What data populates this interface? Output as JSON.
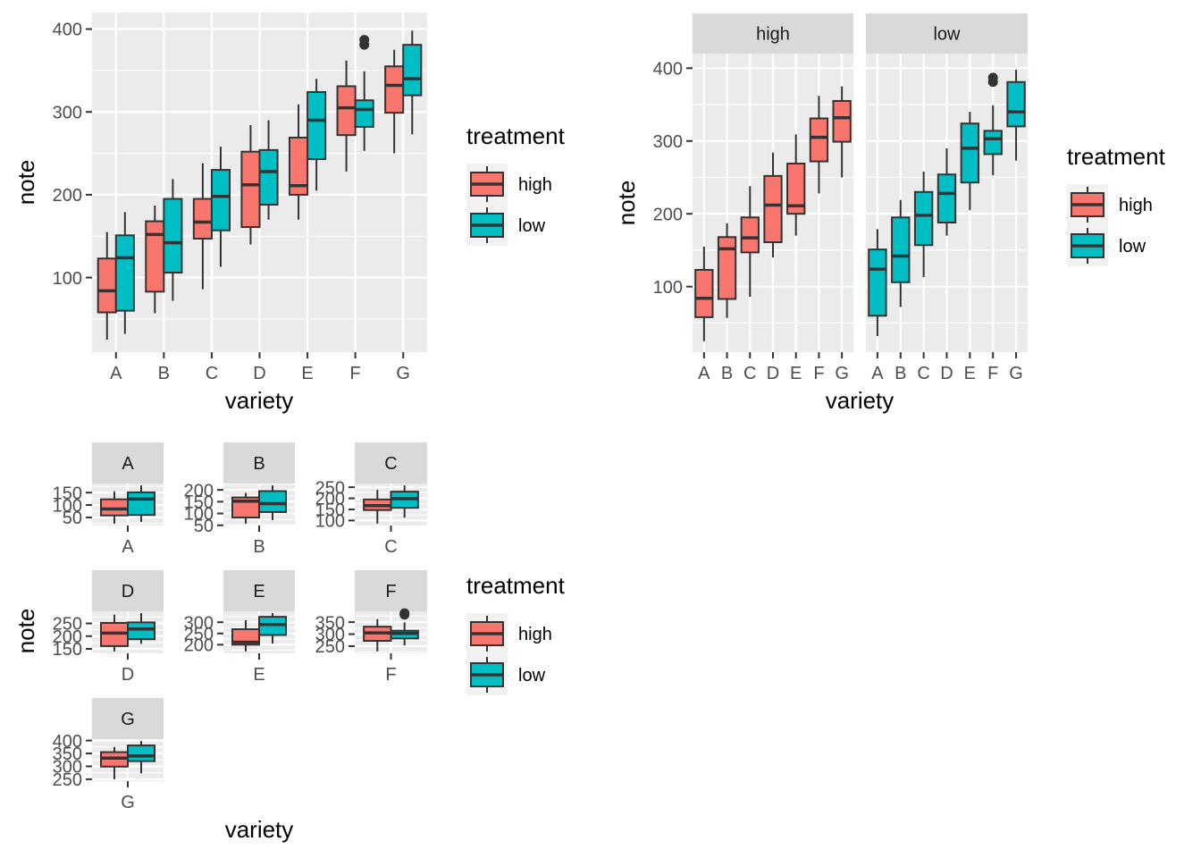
{
  "colors": {
    "high": "#F8766D",
    "low": "#00BFC4"
  },
  "chart_data": [
    {
      "type": "box",
      "facet": "none",
      "xlabel": "variety",
      "ylabel": "note",
      "ylim": [
        10,
        420
      ],
      "yticks": [
        100,
        200,
        300,
        400
      ],
      "categories": [
        "A",
        "B",
        "C",
        "D",
        "E",
        "F",
        "G"
      ],
      "legend": {
        "title": "treatment",
        "entries": [
          "high",
          "low"
        ],
        "position": "right"
      },
      "series": [
        {
          "name": "high",
          "boxes": [
            {
              "lower": 25,
              "q1": 58,
              "median": 84,
              "q3": 123,
              "upper": 155,
              "outliers": []
            },
            {
              "lower": 57,
              "q1": 83,
              "median": 152,
              "q3": 168,
              "upper": 187,
              "outliers": []
            },
            {
              "lower": 86,
              "q1": 147,
              "median": 167,
              "q3": 195,
              "upper": 238,
              "outliers": []
            },
            {
              "lower": 140,
              "q1": 161,
              "median": 212,
              "q3": 252,
              "upper": 284,
              "outliers": []
            },
            {
              "lower": 170,
              "q1": 200,
              "median": 211,
              "q3": 269,
              "upper": 309,
              "outliers": []
            },
            {
              "lower": 228,
              "q1": 272,
              "median": 305,
              "q3": 331,
              "upper": 362,
              "outliers": []
            },
            {
              "lower": 250,
              "q1": 299,
              "median": 332,
              "q3": 355,
              "upper": 375,
              "outliers": []
            }
          ]
        },
        {
          "name": "low",
          "boxes": [
            {
              "lower": 32,
              "q1": 60,
              "median": 124,
              "q3": 151,
              "upper": 179,
              "outliers": []
            },
            {
              "lower": 72,
              "q1": 106,
              "median": 142,
              "q3": 195,
              "upper": 219,
              "outliers": []
            },
            {
              "lower": 113,
              "q1": 157,
              "median": 198,
              "q3": 230,
              "upper": 258,
              "outliers": []
            },
            {
              "lower": 170,
              "q1": 188,
              "median": 228,
              "q3": 254,
              "upper": 290,
              "outliers": []
            },
            {
              "lower": 205,
              "q1": 243,
              "median": 290,
              "q3": 324,
              "upper": 340,
              "outliers": []
            },
            {
              "lower": 253,
              "q1": 282,
              "median": 303,
              "q3": 314,
              "upper": 349,
              "outliers": [
                381,
                387
              ]
            },
            {
              "lower": 273,
              "q1": 320,
              "median": 340,
              "q3": 381,
              "upper": 398,
              "outliers": []
            }
          ]
        }
      ]
    },
    {
      "type": "box",
      "facet": "treatment",
      "facet_labels": [
        "high",
        "low"
      ],
      "xlabel": "variety",
      "ylabel": "note",
      "ylim": [
        10,
        420
      ],
      "yticks": [
        100,
        200,
        300,
        400
      ],
      "categories": [
        "A",
        "B",
        "C",
        "D",
        "E",
        "F",
        "G"
      ],
      "legend": {
        "title": "treatment",
        "entries": [
          "high",
          "low"
        ],
        "position": "right"
      }
    },
    {
      "type": "box",
      "facet": "variety",
      "facet_labels": [
        "A",
        "B",
        "C",
        "D",
        "E",
        "F",
        "G"
      ],
      "xlabel": "variety",
      "ylabel": "note",
      "scales": "free_y",
      "panel_yticks": {
        "A": [
          50,
          100,
          150
        ],
        "B": [
          50,
          100,
          150,
          200
        ],
        "C": [
          100,
          150,
          200,
          250
        ],
        "D": [
          150,
          200,
          250
        ],
        "E": [
          200,
          250,
          300
        ],
        "F": [
          250,
          300,
          350
        ],
        "G": [
          250,
          300,
          350,
          400
        ]
      },
      "legend": {
        "title": "treatment",
        "entries": [
          "high",
          "low"
        ],
        "position": "right"
      }
    }
  ]
}
